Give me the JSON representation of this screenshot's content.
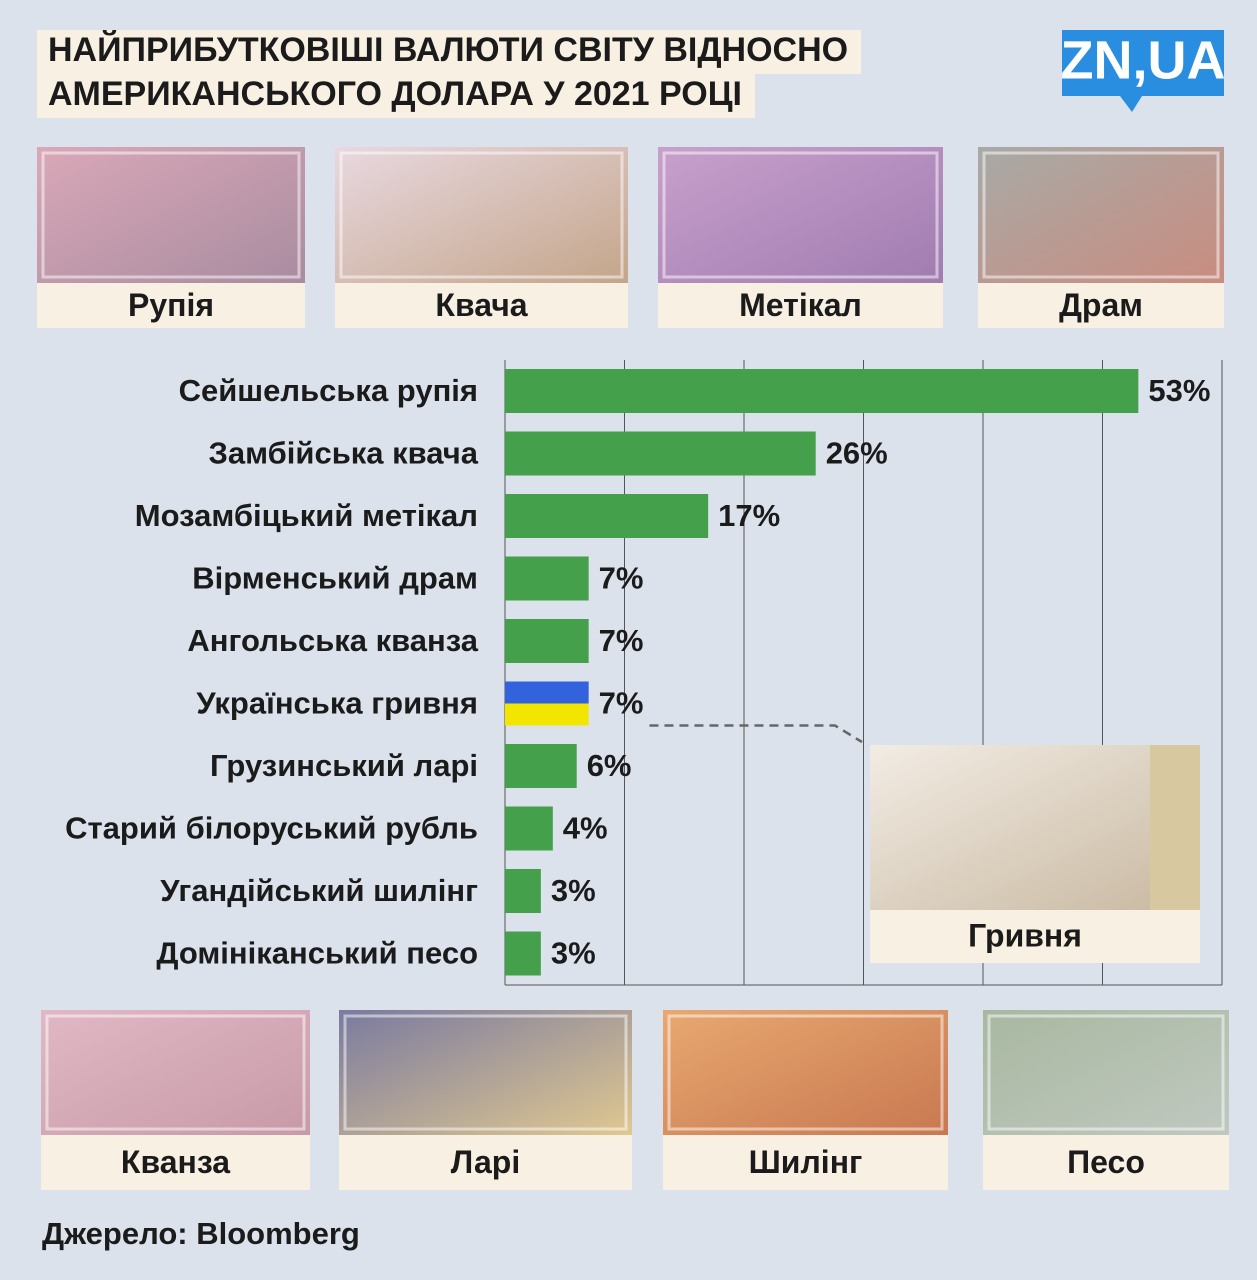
{
  "header": {
    "title_lines": [
      "НАЙПРИБУТКОВІШІ ВАЛЮТИ СВІТУ ВІДНОСНО",
      "АМЕРИКАНСЬКОГО ДОЛАРА У 2021 РОЦІ"
    ],
    "logo": "ZN,UA"
  },
  "banknotes_top": [
    "Рупія",
    "Квача",
    "Метікал",
    "Драм"
  ],
  "banknotes_bottom": [
    "Кванза",
    "Ларі",
    "Шилінг",
    "Песо"
  ],
  "chart_data": {
    "type": "bar",
    "orientation": "horizontal",
    "categories": [
      "Сейшельська рупія",
      "Замбійська квача",
      "Мозамбіцький метікал",
      "Вірменський драм",
      "Ангольська кванза",
      "Українська гривня",
      "Грузинський ларі",
      "Старий білоруський рубль",
      "Угандійський шилінг",
      "Домініканський песо"
    ],
    "values": [
      53,
      26,
      17,
      7,
      7,
      7,
      6,
      4,
      3,
      3
    ],
    "value_labels": [
      "53%",
      "26%",
      "17%",
      "7%",
      "7%",
      "7%",
      "6%",
      "4%",
      "3%",
      "3%"
    ],
    "colors": [
      "#45a04b",
      "#45a04b",
      "#45a04b",
      "#45a04b",
      "#45a04b",
      [
        "#3262dc",
        "#f2e600"
      ],
      "#45a04b",
      "#45a04b",
      "#45a04b",
      "#45a04b"
    ],
    "xlim": [
      0,
      60
    ],
    "xticks": [
      0,
      10,
      20,
      30,
      40,
      50,
      60
    ],
    "grid": true,
    "inset_caption": "Гривня"
  },
  "source": "Джерело: Bloomberg"
}
